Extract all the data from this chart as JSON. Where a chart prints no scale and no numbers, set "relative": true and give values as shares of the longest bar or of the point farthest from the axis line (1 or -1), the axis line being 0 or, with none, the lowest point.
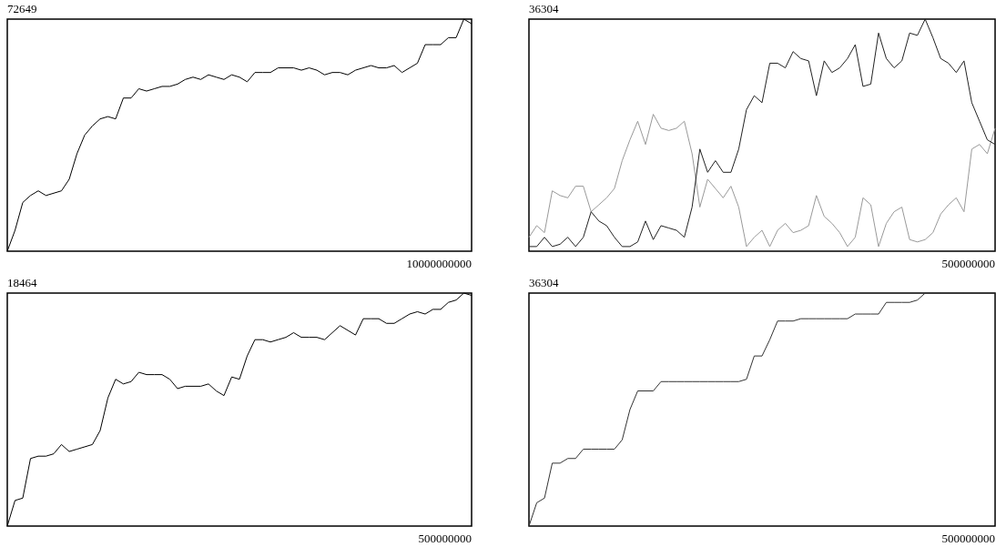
{
  "chart_data": [
    {
      "type": "line",
      "relative": true,
      "annotations": [
        "72649",
        "10000000000"
      ],
      "categories": [
        null,
        null,
        null,
        null,
        null,
        null,
        null,
        null,
        null,
        null,
        null,
        null,
        null,
        null,
        null,
        null,
        null,
        null,
        null,
        null,
        null,
        null,
        null,
        null,
        null,
        null,
        null,
        null,
        null,
        null,
        null,
        null,
        null,
        null,
        null,
        null,
        null,
        null,
        null,
        null,
        null,
        null,
        null,
        null,
        null,
        null,
        null,
        null,
        null,
        null,
        null,
        null,
        null,
        null,
        null,
        null,
        null,
        null,
        null,
        null,
        null
      ],
      "series": [
        {
          "color": "#000000",
          "values": [
            0,
            0.09,
            0.21,
            0.24,
            0.26,
            0.24,
            0.25,
            0.26,
            0.31,
            0.42,
            0.5,
            0.54,
            0.57,
            0.58,
            0.57,
            0.66,
            0.66,
            0.7,
            0.69,
            0.7,
            0.71,
            0.71,
            0.72,
            0.74,
            0.75,
            0.74,
            0.76,
            0.75,
            0.74,
            0.76,
            0.75,
            0.73,
            0.77,
            0.77,
            0.77,
            0.79,
            0.79,
            0.79,
            0.78,
            0.79,
            0.78,
            0.76,
            0.77,
            0.77,
            0.76,
            0.78,
            0.79,
            0.8,
            0.79,
            0.79,
            0.8,
            0.77,
            0.79,
            0.81,
            0.89,
            0.89,
            0.89,
            0.92,
            0.92,
            1,
            0.98
          ]
        }
      ]
    },
    {
      "type": "line",
      "relative": true,
      "annotations": [
        "36304",
        "500000000"
      ],
      "categories": [
        null,
        null,
        null,
        null,
        null,
        null,
        null,
        null,
        null,
        null,
        null,
        null,
        null,
        null,
        null,
        null,
        null,
        null,
        null,
        null,
        null,
        null,
        null,
        null,
        null,
        null,
        null,
        null,
        null,
        null,
        null,
        null,
        null,
        null,
        null,
        null,
        null,
        null,
        null,
        null,
        null,
        null,
        null,
        null,
        null,
        null,
        null,
        null,
        null,
        null,
        null,
        null,
        null,
        null,
        null,
        null,
        null,
        null,
        null,
        null,
        null
      ],
      "series": [
        {
          "color": "#999999",
          "values": [
            0.06,
            0.11,
            0.08,
            0.26,
            0.24,
            0.23,
            0.28,
            0.28,
            0.17,
            0.2,
            0.23,
            0.27,
            0.39,
            0.48,
            0.56,
            0.46,
            0.59,
            0.53,
            0.52,
            0.53,
            0.56,
            0.42,
            0.19,
            0.31,
            0.27,
            0.23,
            0.28,
            0.19,
            0.02,
            0.06,
            0.09,
            0.02,
            0.09,
            0.12,
            0.08,
            0.09,
            0.11,
            0.24,
            0.15,
            0.12,
            0.08,
            0.02,
            0.06,
            0.23,
            0.2,
            0.02,
            0.12,
            0.17,
            0.19,
            0.05,
            0.04,
            0.05,
            0.08,
            0.16,
            0.2,
            0.23,
            0.17,
            0.44,
            0.46,
            0.42,
            0.53
          ]
        },
        {
          "color": "#222222",
          "values": [
            0.02,
            0.02,
            0.06,
            0.02,
            0.03,
            0.06,
            0.02,
            0.06,
            0.17,
            0.13,
            0.11,
            0.06,
            0.02,
            0.02,
            0.04,
            0.13,
            0.05,
            0.11,
            0.1,
            0.09,
            0.06,
            0.19,
            0.44,
            0.34,
            0.39,
            0.34,
            0.34,
            0.44,
            0.61,
            0.67,
            0.64,
            0.81,
            0.81,
            0.79,
            0.86,
            0.83,
            0.82,
            0.67,
            0.82,
            0.77,
            0.79,
            0.83,
            0.89,
            0.71,
            0.72,
            0.94,
            0.83,
            0.79,
            0.82,
            0.94,
            0.93,
            1,
            0.92,
            0.83,
            0.81,
            0.77,
            0.82,
            0.64,
            0.56,
            0.48,
            0.46
          ]
        }
      ]
    },
    {
      "type": "line",
      "relative": true,
      "annotations": [
        "18464",
        "500000000"
      ],
      "categories": [
        null,
        null,
        null,
        null,
        null,
        null,
        null,
        null,
        null,
        null,
        null,
        null,
        null,
        null,
        null,
        null,
        null,
        null,
        null,
        null,
        null,
        null,
        null,
        null,
        null,
        null,
        null,
        null,
        null,
        null,
        null,
        null,
        null,
        null,
        null,
        null,
        null,
        null,
        null,
        null,
        null,
        null,
        null,
        null,
        null,
        null,
        null,
        null,
        null,
        null,
        null,
        null,
        null,
        null,
        null,
        null,
        null,
        null,
        null,
        null,
        null
      ],
      "series": [
        {
          "color": "#000000",
          "values": [
            0,
            0.11,
            0.12,
            0.29,
            0.3,
            0.3,
            0.31,
            0.35,
            0.32,
            0.33,
            0.34,
            0.35,
            0.41,
            0.55,
            0.63,
            0.61,
            0.62,
            0.66,
            0.65,
            0.65,
            0.65,
            0.63,
            0.59,
            0.6,
            0.6,
            0.6,
            0.61,
            0.58,
            0.56,
            0.64,
            0.63,
            0.73,
            0.8,
            0.8,
            0.79,
            0.8,
            0.81,
            0.83,
            0.81,
            0.81,
            0.81,
            0.8,
            0.83,
            0.86,
            0.84,
            0.82,
            0.89,
            0.89,
            0.89,
            0.87,
            0.87,
            0.89,
            0.91,
            0.92,
            0.91,
            0.93,
            0.93,
            0.96,
            0.97,
            1,
            0.99
          ]
        }
      ]
    },
    {
      "type": "line",
      "relative": true,
      "annotations": [
        "36304",
        "500000000"
      ],
      "categories": [
        null,
        null,
        null,
        null,
        null,
        null,
        null,
        null,
        null,
        null,
        null,
        null,
        null,
        null,
        null,
        null,
        null,
        null,
        null,
        null,
        null,
        null,
        null,
        null,
        null,
        null,
        null,
        null,
        null,
        null,
        null,
        null,
        null,
        null,
        null,
        null,
        null,
        null,
        null,
        null,
        null,
        null,
        null,
        null,
        null,
        null,
        null,
        null,
        null,
        null,
        null,
        null,
        null,
        null,
        null,
        null,
        null,
        null,
        null,
        null,
        null
      ],
      "series": [
        {
          "color": "#333333",
          "values": [
            0,
            0.1,
            0.12,
            0.27,
            0.27,
            0.29,
            0.29,
            0.33,
            0.33,
            0.33,
            0.33,
            0.33,
            0.37,
            0.5,
            0.58,
            0.58,
            0.58,
            0.62,
            0.62,
            0.62,
            0.62,
            0.62,
            0.62,
            0.62,
            0.62,
            0.62,
            0.62,
            0.62,
            0.63,
            0.73,
            0.73,
            0.8,
            0.88,
            0.88,
            0.88,
            0.89,
            0.89,
            0.89,
            0.89,
            0.89,
            0.89,
            0.89,
            0.91,
            0.91,
            0.91,
            0.91,
            0.96,
            0.96,
            0.96,
            0.96,
            0.97,
            1,
            1,
            1,
            1,
            1,
            1,
            1,
            1,
            1,
            1
          ]
        }
      ]
    }
  ]
}
